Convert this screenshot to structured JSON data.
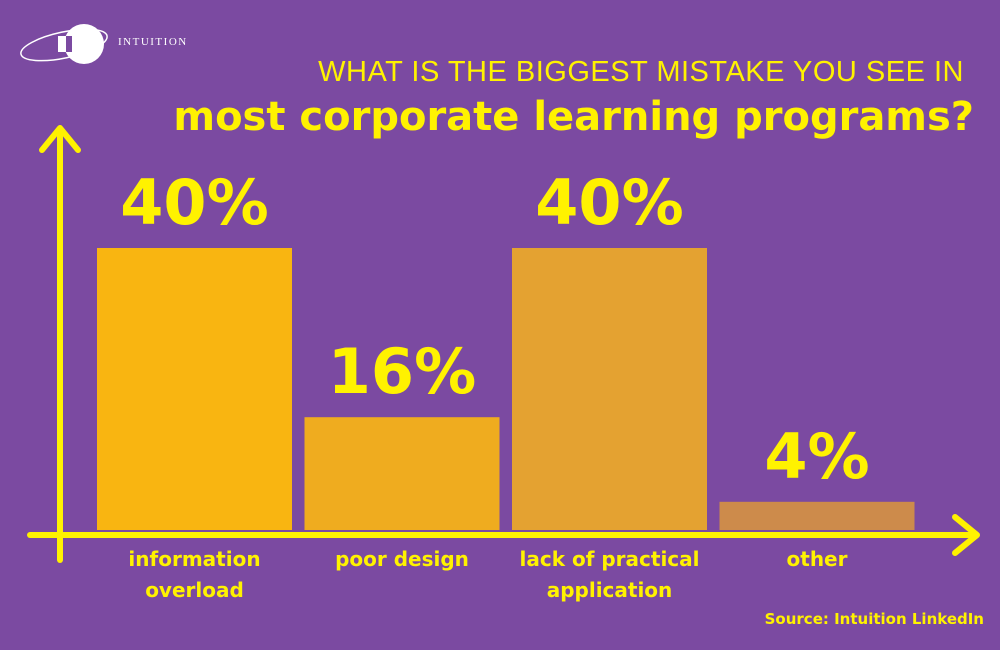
{
  "logo": {
    "text": "INTUITION"
  },
  "chart_data": {
    "type": "bar",
    "title": "WHAT IS THE BIGGEST MISTAKE YOU SEE IN",
    "subtitle": "most corporate learning programs?",
    "categories": [
      "information overload",
      "poor design",
      "lack of practical application",
      "other"
    ],
    "values": [
      40,
      16,
      40,
      4
    ],
    "value_labels": [
      "40%",
      "16%",
      "40%",
      "4%"
    ],
    "colors": [
      "#f9b511",
      "#efac1f",
      "#e4a231",
      "#cd8b4b"
    ],
    "source": "Source: Intuition LinkedIn"
  }
}
